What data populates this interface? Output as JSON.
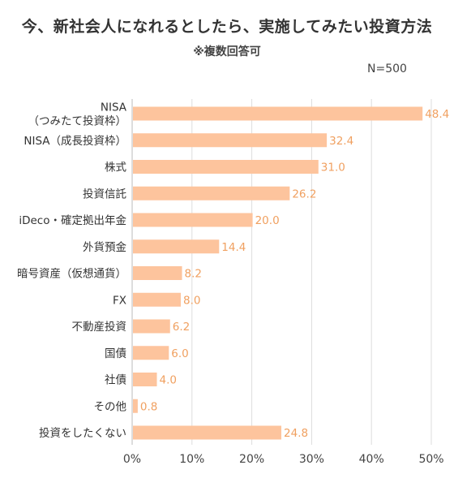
{
  "title": "今、新社会人になれるとしたら、実施してみたい投資方法",
  "subtitle": "※複数回答可",
  "note": "N=500",
  "colors": {
    "bar": "#FDC49D",
    "value_label": "#F0A060",
    "grid": "#DDDDDD",
    "text": "#333333"
  },
  "chart_data": {
    "type": "bar",
    "orientation": "horizontal",
    "categories": [
      [
        "NISA",
        "（つみたて投資枠）"
      ],
      [
        "NISA（成長投資枠）"
      ],
      [
        "株式"
      ],
      [
        "投資信託"
      ],
      [
        "iDeco・確定拠出年金"
      ],
      [
        "外貨預金"
      ],
      [
        "暗号資産（仮想通貨）"
      ],
      [
        "FX"
      ],
      [
        "不動産投資"
      ],
      [
        "国債"
      ],
      [
        "社債"
      ],
      [
        "その他"
      ],
      [
        "投資をしたくない"
      ]
    ],
    "values": [
      48.4,
      32.4,
      31.0,
      26.2,
      20.0,
      14.4,
      8.2,
      8.0,
      6.2,
      6.0,
      4.0,
      0.8,
      24.8
    ],
    "value_labels": [
      "48.4",
      "32.4",
      "31.0",
      "26.2",
      "20.0",
      "14.4",
      "8.2",
      "8.0",
      "6.2",
      "6.0",
      "4.0",
      "0.8",
      "24.8"
    ],
    "xlim": [
      0,
      50
    ],
    "xticks": [
      0,
      10,
      20,
      30,
      40,
      50
    ],
    "xtick_labels": [
      "0%",
      "10%",
      "20%",
      "30%",
      "40%",
      "50%"
    ],
    "grid": true,
    "legend": "none"
  }
}
